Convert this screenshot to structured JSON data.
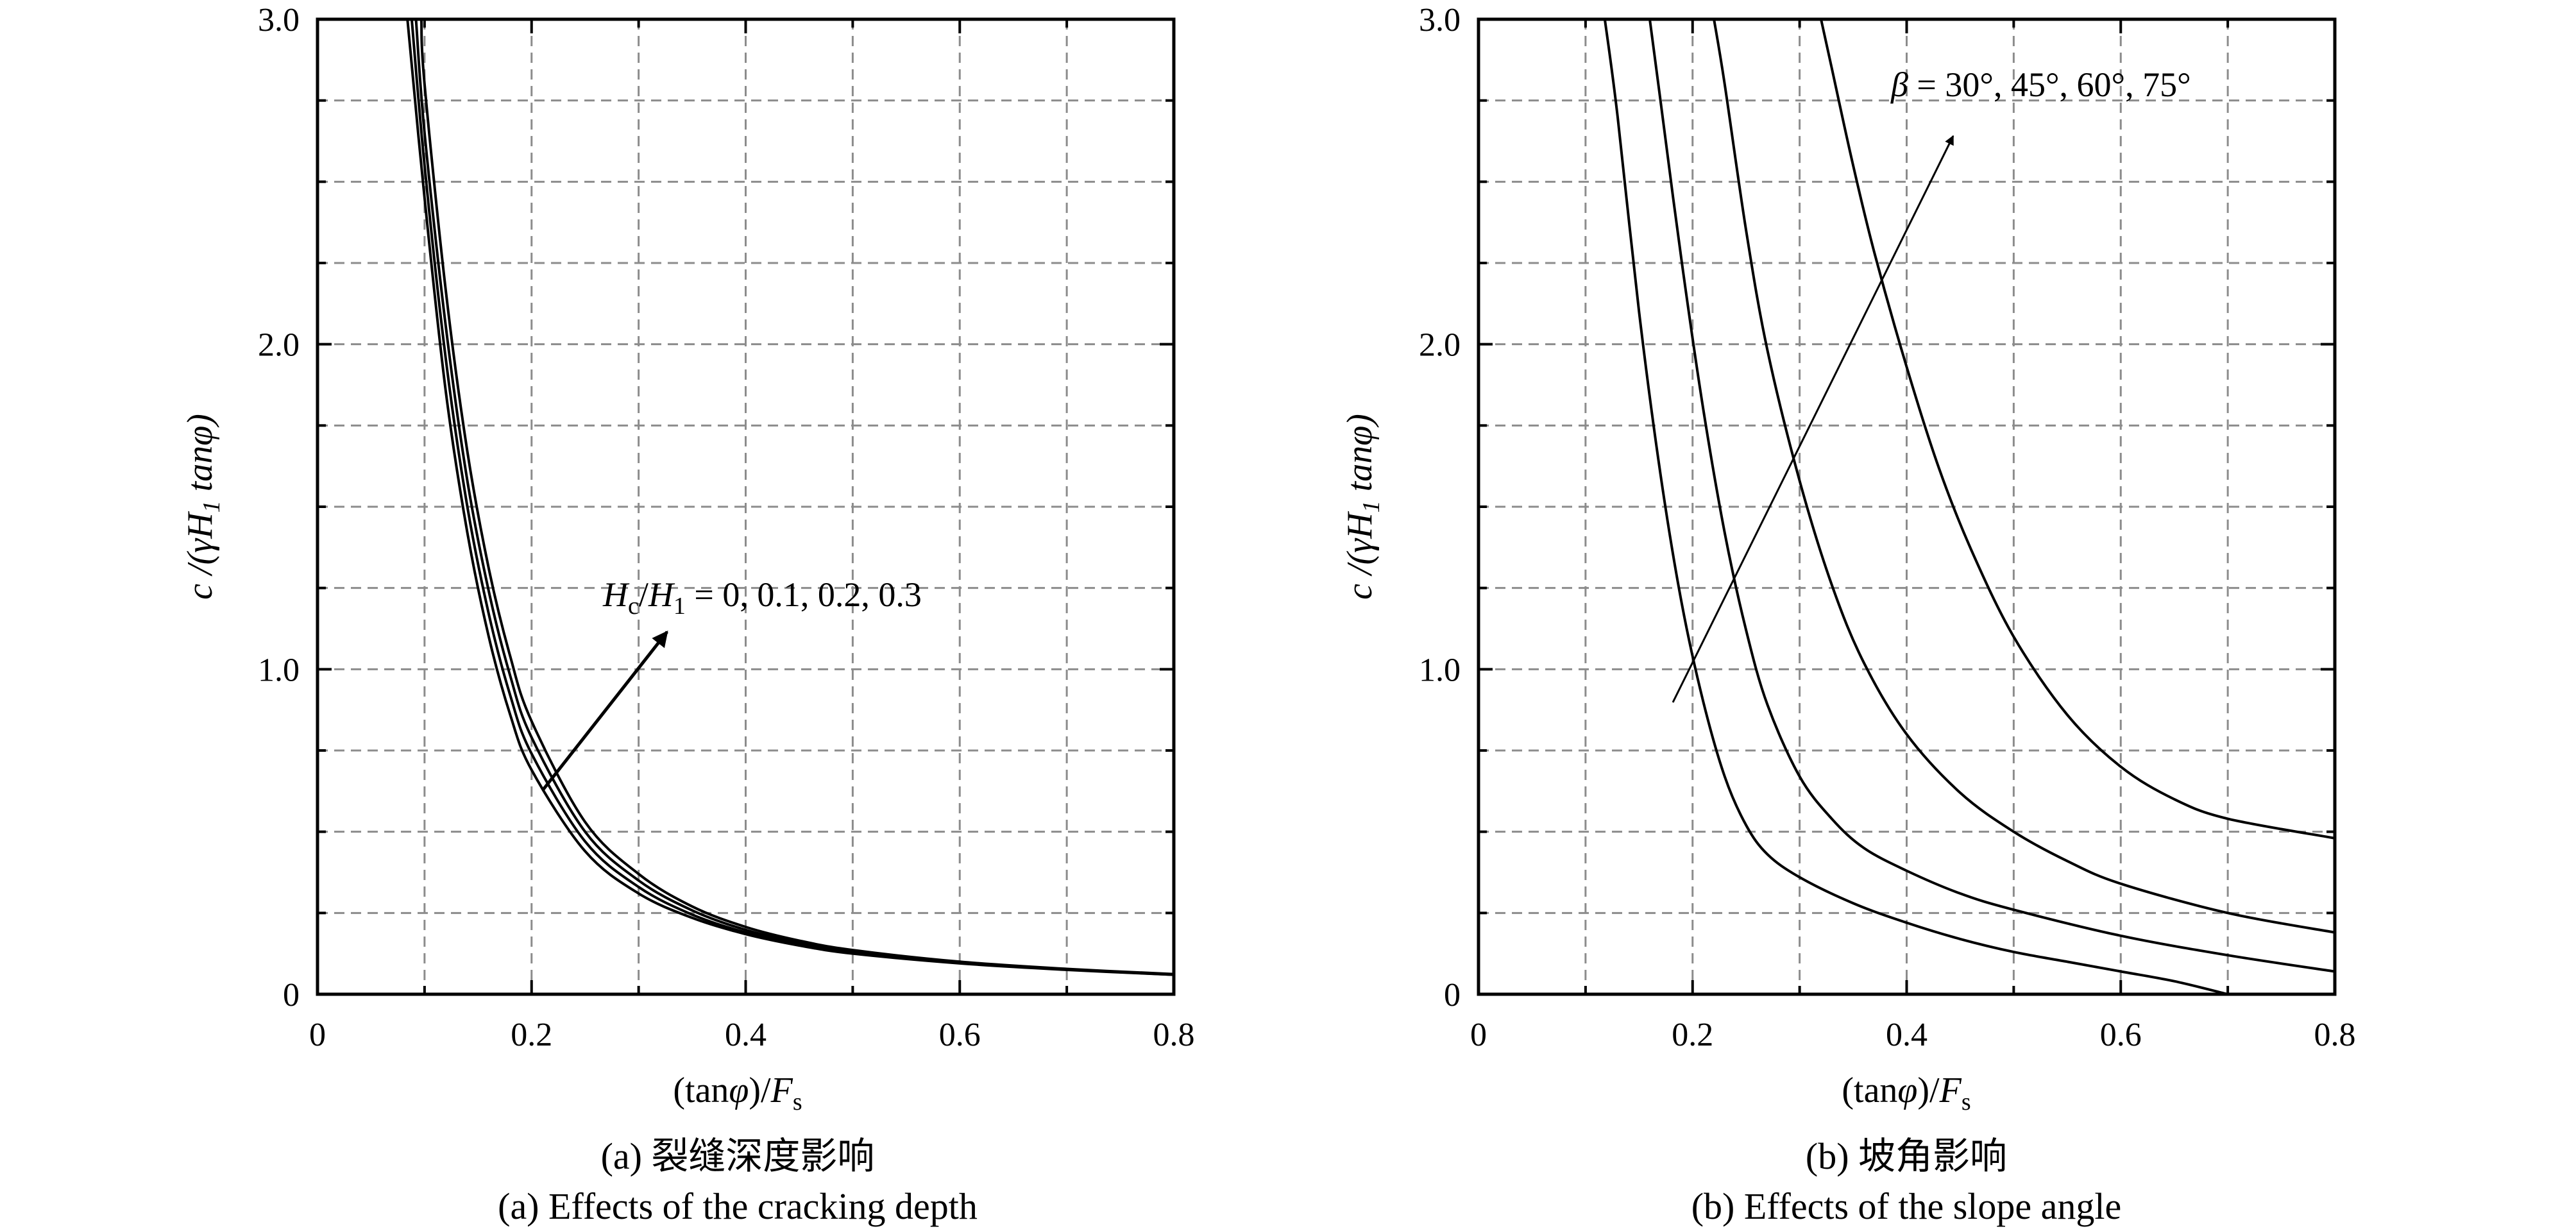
{
  "chart_data": [
    {
      "type": "line",
      "panel_id": "a",
      "xlabel": "(tanφ)/F_s",
      "ylabel": "c /(γH_1 tanφ)",
      "xlim": [
        0,
        0.8
      ],
      "ylim": [
        0,
        3.0
      ],
      "xticks": [
        "0",
        "0.2",
        "0.4",
        "0.6",
        "0.8"
      ],
      "yticks": [
        "0",
        "1.0",
        "2.0",
        "3.0"
      ],
      "grid": true,
      "annotation": "H_c/H_1 = 0, 0.1, 0.2, 0.3",
      "caption_cn": "(a) 裂缝深度影响",
      "caption_en": "(a) Effects of the cracking depth",
      "series": [
        {
          "x": [
            0.084,
            0.1,
            0.12,
            0.14,
            0.16,
            0.18,
            0.2,
            0.25,
            0.3,
            0.35,
            0.4,
            0.45,
            0.5,
            0.6,
            0.7,
            0.8
          ],
          "y": [
            3.0,
            2.45,
            1.85,
            1.42,
            1.1,
            0.86,
            0.69,
            0.44,
            0.31,
            0.235,
            0.185,
            0.15,
            0.125,
            0.095,
            0.075,
            0.06
          ]
        },
        {
          "x": [
            0.088,
            0.1,
            0.12,
            0.14,
            0.16,
            0.18,
            0.2,
            0.25,
            0.3,
            0.35,
            0.4,
            0.45,
            0.5,
            0.6,
            0.7,
            0.8
          ],
          "y": [
            3.0,
            2.55,
            1.95,
            1.5,
            1.17,
            0.92,
            0.74,
            0.47,
            0.33,
            0.245,
            0.19,
            0.155,
            0.128,
            0.096,
            0.076,
            0.06
          ]
        },
        {
          "x": [
            0.092,
            0.1,
            0.12,
            0.14,
            0.16,
            0.18,
            0.2,
            0.25,
            0.3,
            0.35,
            0.4,
            0.45,
            0.5,
            0.6,
            0.7,
            0.8
          ],
          "y": [
            3.0,
            2.65,
            2.05,
            1.58,
            1.24,
            0.98,
            0.79,
            0.5,
            0.35,
            0.258,
            0.198,
            0.16,
            0.132,
            0.098,
            0.077,
            0.061
          ]
        },
        {
          "x": [
            0.097,
            0.1,
            0.12,
            0.14,
            0.16,
            0.18,
            0.2,
            0.25,
            0.3,
            0.35,
            0.4,
            0.45,
            0.5,
            0.6,
            0.7,
            0.8
          ],
          "y": [
            3.0,
            2.8,
            2.16,
            1.67,
            1.31,
            1.04,
            0.84,
            0.53,
            0.37,
            0.27,
            0.207,
            0.165,
            0.136,
            0.1,
            0.078,
            0.062
          ]
        }
      ]
    },
    {
      "type": "line",
      "panel_id": "b",
      "xlabel": "(tanφ)/F_s",
      "ylabel": "c /(γH_1 tanφ)",
      "xlim": [
        0,
        0.8
      ],
      "ylim": [
        0,
        3.0
      ],
      "xticks": [
        "0",
        "0.2",
        "0.4",
        "0.6",
        "0.8"
      ],
      "yticks": [
        "0",
        "1.0",
        "2.0",
        "3.0"
      ],
      "grid": true,
      "annotation": "β = 30°, 45°, 60°, 75°",
      "caption_cn": "(b) 坡角影响",
      "caption_en": "(b) Effects of the slope angle",
      "series": [
        {
          "x": [
            0.118,
            0.13,
            0.15,
            0.17,
            0.19,
            0.21,
            0.23,
            0.25,
            0.27,
            0.3,
            0.35,
            0.4,
            0.45,
            0.5,
            0.55,
            0.6,
            0.65,
            0.7
          ],
          "y": [
            3.0,
            2.7,
            2.1,
            1.6,
            1.2,
            0.9,
            0.67,
            0.52,
            0.43,
            0.36,
            0.28,
            0.22,
            0.17,
            0.13,
            0.1,
            0.07,
            0.04,
            0.0
          ]
        },
        {
          "x": [
            0.16,
            0.17,
            0.19,
            0.21,
            0.23,
            0.25,
            0.27,
            0.3,
            0.33,
            0.36,
            0.4,
            0.45,
            0.5,
            0.6,
            0.7,
            0.8
          ],
          "y": [
            3.0,
            2.75,
            2.25,
            1.8,
            1.42,
            1.12,
            0.89,
            0.67,
            0.54,
            0.45,
            0.38,
            0.31,
            0.26,
            0.18,
            0.12,
            0.07
          ]
        },
        {
          "x": [
            0.22,
            0.23,
            0.25,
            0.27,
            0.3,
            0.33,
            0.36,
            0.4,
            0.45,
            0.5,
            0.55,
            0.6,
            0.7,
            0.8
          ],
          "y": [
            3.0,
            2.8,
            2.35,
            1.98,
            1.58,
            1.26,
            1.02,
            0.8,
            0.62,
            0.5,
            0.41,
            0.34,
            0.25,
            0.19
          ]
        },
        {
          "x": [
            0.32,
            0.33,
            0.35,
            0.37,
            0.4,
            0.43,
            0.46,
            0.5,
            0.55,
            0.6,
            0.65,
            0.7,
            0.8
          ],
          "y": [
            3.0,
            2.85,
            2.55,
            2.28,
            1.93,
            1.62,
            1.37,
            1.1,
            0.86,
            0.7,
            0.6,
            0.54,
            0.48
          ]
        }
      ]
    }
  ]
}
